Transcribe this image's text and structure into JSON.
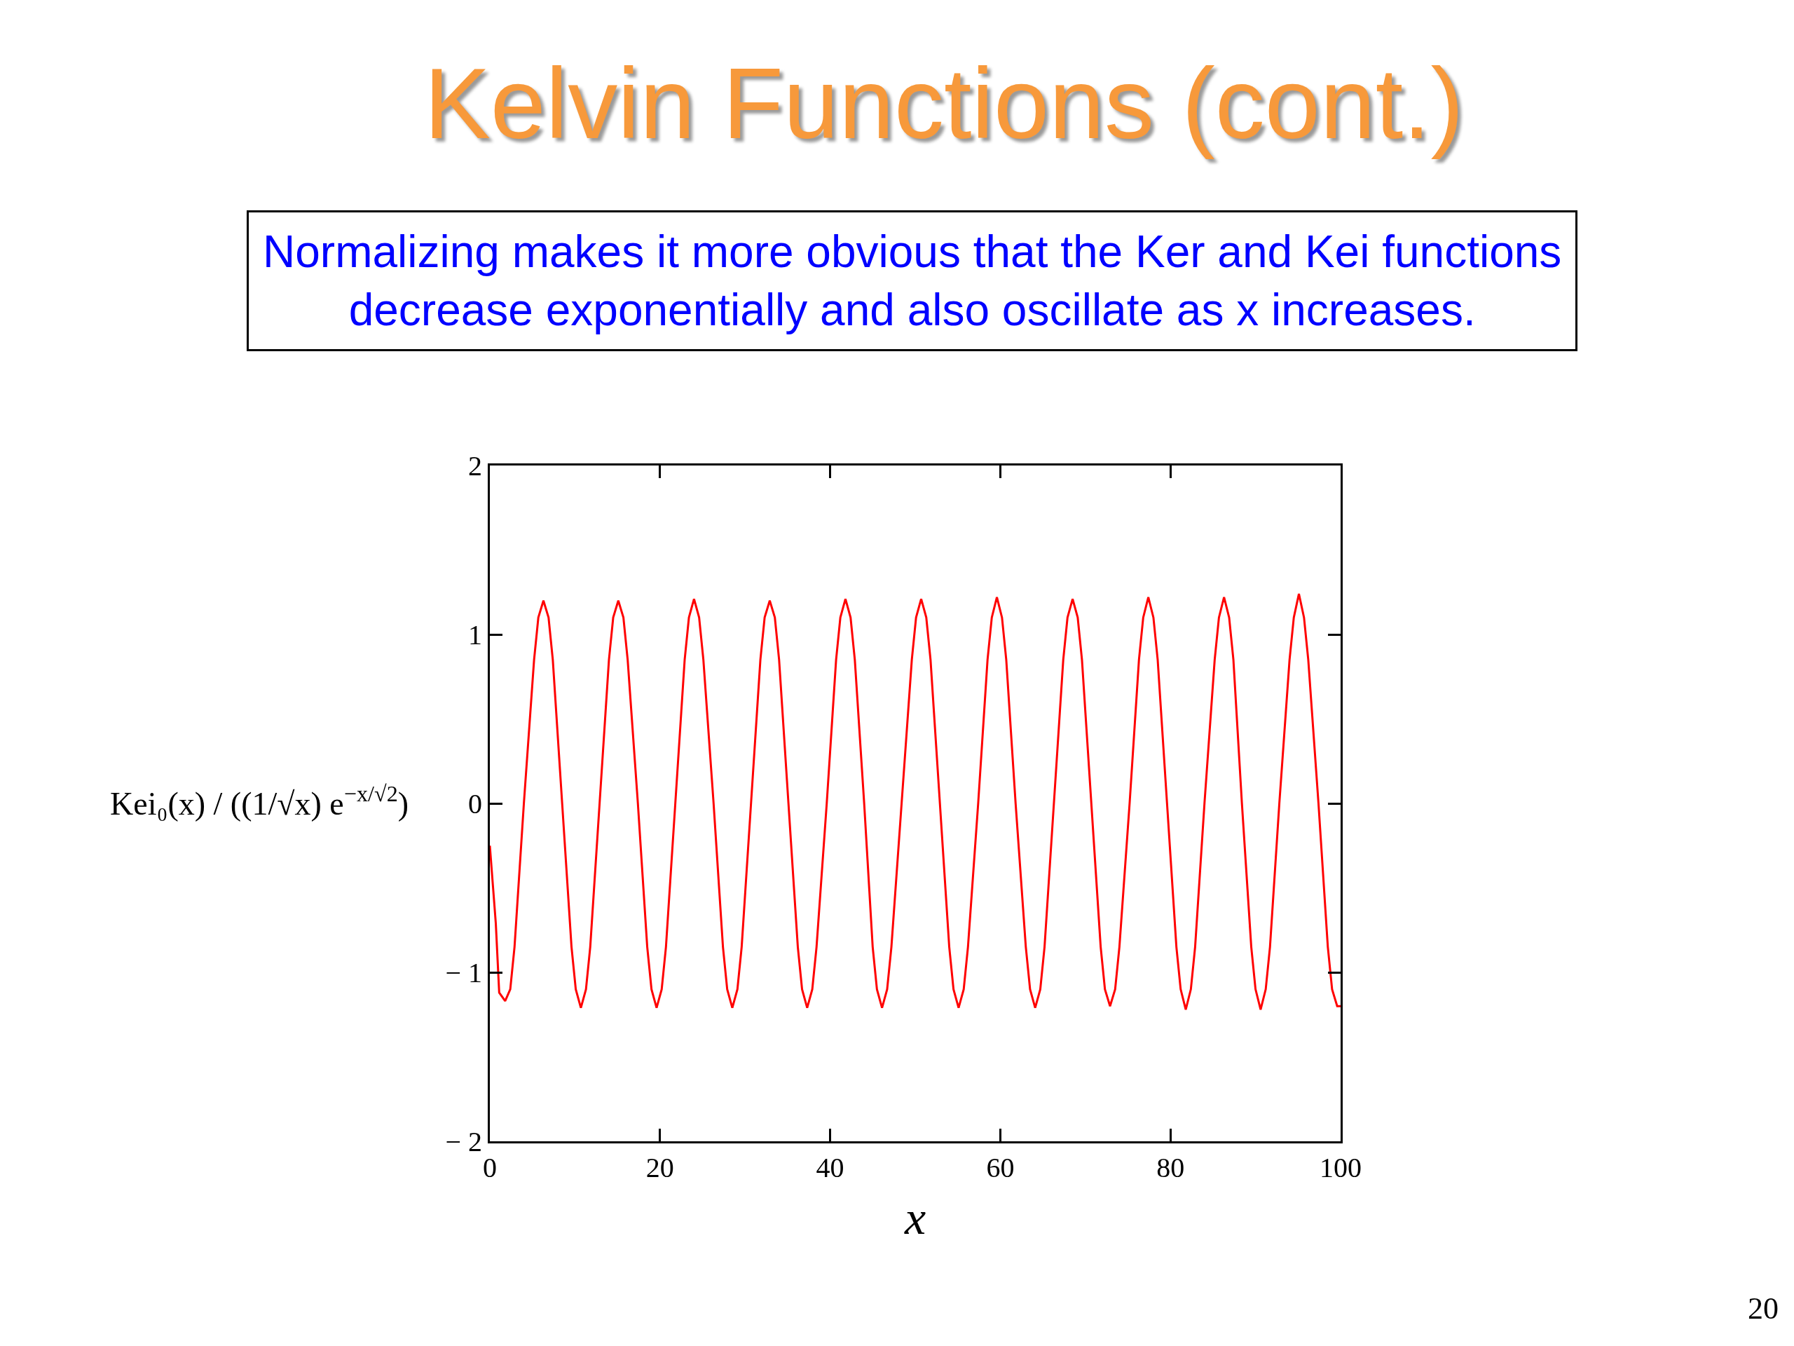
{
  "chart_data": {
    "type": "line",
    "title": "Kelvin Functions (cont.)",
    "subtitle": "Normalizing makes it more obvious that the Ker and Kei functions decrease exponentially and also oscillate as x increases.",
    "xlabel": "x",
    "ylabel": "Kei₀(x) / ((1/√x) e$^{−x/√2}$)",
    "annotations": [
      "20"
    ],
    "x": [
      0,
      0.7,
      1.1,
      1.8,
      2.4,
      2.9,
      4.0,
      5.2,
      5.7,
      6.3,
      6.9,
      7.4,
      8.5,
      9.6,
      10.1,
      10.7,
      11.3,
      11.8,
      12.9,
      14.0,
      14.5,
      15.1,
      15.7,
      16.2,
      17.4,
      18.5,
      19.0,
      19.6,
      20.2,
      20.7,
      21.8,
      22.9,
      23.4,
      24.0,
      24.6,
      25.1,
      26.3,
      27.4,
      27.9,
      28.5,
      29.1,
      29.6,
      30.7,
      31.8,
      32.3,
      32.9,
      33.5,
      34.0,
      35.1,
      36.2,
      36.7,
      37.3,
      37.9,
      38.4,
      39.6,
      40.7,
      41.2,
      41.8,
      42.4,
      42.9,
      44.0,
      45.0,
      45.5,
      46.1,
      46.7,
      47.2,
      48.4,
      49.6,
      50.1,
      50.7,
      51.3,
      51.8,
      52.9,
      54.0,
      54.5,
      55.1,
      55.7,
      56.2,
      57.4,
      58.5,
      59.0,
      59.6,
      60.2,
      60.7,
      61.8,
      63.0,
      63.5,
      64.1,
      64.7,
      65.2,
      66.3,
      67.4,
      67.9,
      68.5,
      69.1,
      69.6,
      70.7,
      71.8,
      72.3,
      72.9,
      73.5,
      74.0,
      75.2,
      76.3,
      76.8,
      77.4,
      78.0,
      78.5,
      79.6,
      80.7,
      81.2,
      81.8,
      82.4,
      82.9,
      84.0,
      85.2,
      85.7,
      86.3,
      86.9,
      87.4,
      88.4,
      89.5,
      90.0,
      90.6,
      91.2,
      91.7,
      92.8,
      94.0,
      94.5,
      95.1,
      95.7,
      96.2,
      97.4,
      98.5,
      99.0,
      99.6,
      100
    ],
    "series": [
      {
        "color": "#ff0000",
        "values": [
          -0.25,
          -0.71,
          -1.12,
          -1.17,
          -1.1,
          -0.85,
          0,
          0.85,
          1.1,
          1.2,
          1.1,
          0.85,
          0,
          -0.85,
          -1.1,
          -1.21,
          -1.1,
          -0.85,
          0,
          0.85,
          1.1,
          1.2,
          1.1,
          0.85,
          0,
          -0.85,
          -1.1,
          -1.21,
          -1.1,
          -0.85,
          0,
          0.85,
          1.1,
          1.21,
          1.1,
          0.85,
          0,
          -0.85,
          -1.1,
          -1.21,
          -1.1,
          -0.85,
          0,
          0.85,
          1.1,
          1.2,
          1.1,
          0.85,
          0,
          -0.85,
          -1.1,
          -1.21,
          -1.1,
          -0.85,
          0,
          0.85,
          1.1,
          1.21,
          1.1,
          0.85,
          0,
          -0.85,
          -1.1,
          -1.21,
          -1.1,
          -0.85,
          0,
          0.85,
          1.1,
          1.21,
          1.1,
          0.85,
          0,
          -0.85,
          -1.1,
          -1.21,
          -1.1,
          -0.85,
          0,
          0.85,
          1.1,
          1.22,
          1.1,
          0.85,
          0,
          -0.85,
          -1.1,
          -1.21,
          -1.1,
          -0.85,
          0,
          0.85,
          1.1,
          1.21,
          1.1,
          0.85,
          0,
          -0.85,
          -1.1,
          -1.2,
          -1.1,
          -0.85,
          0,
          0.85,
          1.1,
          1.22,
          1.1,
          0.85,
          0,
          -0.85,
          -1.1,
          -1.22,
          -1.1,
          -0.85,
          0,
          0.85,
          1.1,
          1.22,
          1.1,
          0.85,
          0,
          -0.85,
          -1.1,
          -1.22,
          -1.1,
          -0.85,
          0,
          0.85,
          1.1,
          1.24,
          1.1,
          0.85,
          0,
          -0.85,
          -1.1,
          -1.2,
          -1.2
        ]
      }
    ],
    "xlim": [
      0,
      100
    ],
    "xticks": [
      0,
      20,
      40,
      60,
      80,
      100
    ],
    "ylim": [
      -2,
      2
    ],
    "yticks": [
      {
        "value": -2,
        "label": "− 2"
      },
      {
        "value": -1,
        "label": "− 1"
      },
      0,
      1,
      2
    ]
  }
}
